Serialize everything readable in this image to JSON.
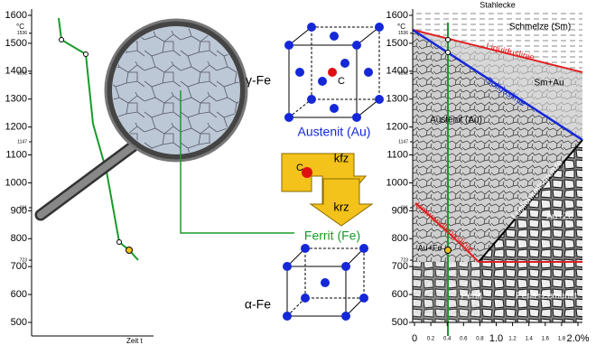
{
  "left_diagram": {
    "unit": "°C",
    "ticks": [
      1600,
      1500,
      1400,
      1300,
      1200,
      1100,
      1000,
      900,
      800,
      700,
      600,
      500
    ],
    "minor_ticks": [
      1536,
      1392,
      1147,
      911,
      723
    ],
    "x_label": "Zeit t"
  },
  "center": {
    "gamma_label": "γ-Fe",
    "carbon_label": "C",
    "austenite_label": "Austenit (Au)",
    "fcc_label": "kfz",
    "carbon_arrow_label": "C",
    "bcc_label": "krz",
    "ferrite_label": "Ferrit (Fe)",
    "alpha_label": "α-Fe"
  },
  "right_diagram": {
    "title": "Stahlecke",
    "unit": "°C",
    "ticks": [
      1600,
      1500,
      1400,
      1300,
      1200,
      1100,
      1000,
      900,
      800,
      700,
      600,
      500
    ],
    "minor_ticks": [
      1536,
      1392,
      1147,
      911,
      723
    ],
    "xticks": [
      0,
      0.2,
      0.4,
      0.6,
      0.8,
      {
        "value": 1,
        "label": "1.0"
      },
      1.2,
      1.4,
      1.6,
      1.8,
      {
        "value": 2,
        "label": "2.0%"
      }
    ],
    "regions": {
      "melt": "Schmelze (Sm)",
      "liquidus": "Liquiduslinie",
      "melt_austenite": "Sm+Au",
      "solidus": "Soliduslinie",
      "austenite": "Austenit (Au)",
      "solubility": "Löslichkeitsgrenze",
      "austenite_cementite": "Au+Ze",
      "transformation": "Umwandlungslinie",
      "austenite_ferrite": "Au+Fe",
      "pearlite": "Perlit",
      "pearlite_cementite": "Perlit+Zementit"
    }
  }
}
